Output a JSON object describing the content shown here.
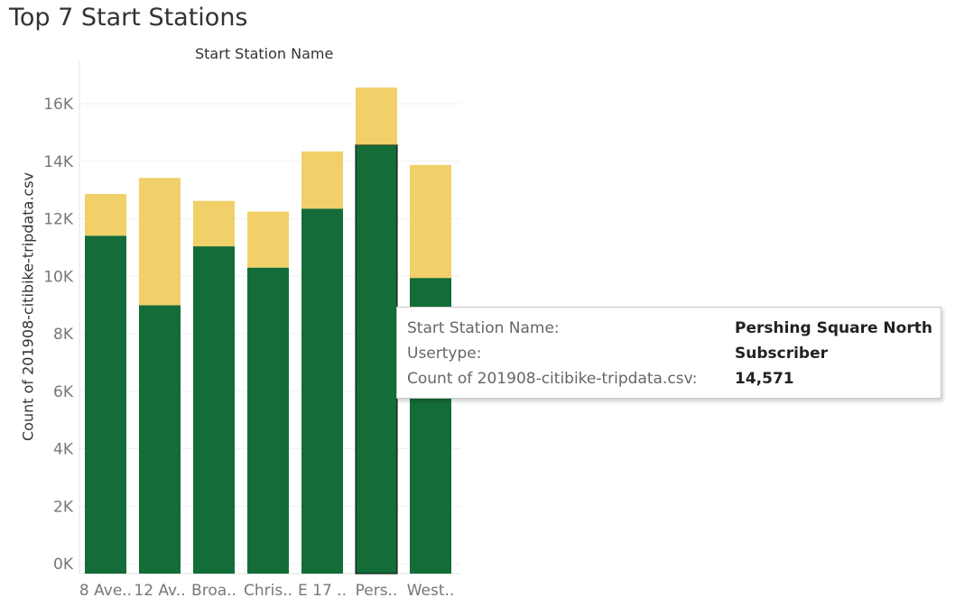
{
  "title": "Top 7 Start Stations",
  "chart_data": {
    "type": "bar",
    "stacked": true,
    "column_header": "Start Station Name",
    "ylabel": "Count of 201908-citibike-tripdata.csv",
    "categories": [
      "8 Ave..",
      "12 Av..",
      "Broa..",
      "Chris..",
      "E 17 ..",
      "Pers..",
      "West.."
    ],
    "series": [
      {
        "color": "#146c38",
        "values": [
          11410,
          8990,
          11040,
          10300,
          12350,
          14571,
          9940
        ]
      },
      {
        "color": "#f1d06a",
        "values": [
          1450,
          4430,
          1580,
          1950,
          1990,
          1990,
          3930
        ]
      }
    ],
    "ylim": [
      0,
      17500
    ],
    "yticks": [
      0,
      2000,
      4000,
      6000,
      8000,
      10000,
      12000,
      14000,
      16000
    ],
    "ytick_labels": [
      "0K",
      "2K",
      "4K",
      "6K",
      "8K",
      "10K",
      "12K",
      "14K",
      "16K"
    ],
    "grid": true,
    "highlighted": {
      "category_index": 5,
      "series_index": 0
    }
  },
  "tooltip": {
    "rows": [
      {
        "key": "Start Station Name:",
        "value": "Pershing Square North"
      },
      {
        "key": "Usertype:",
        "value": "Subscriber"
      },
      {
        "key": "Count of 201908-citibike-tripdata.csv:",
        "value": "14,571"
      }
    ]
  }
}
